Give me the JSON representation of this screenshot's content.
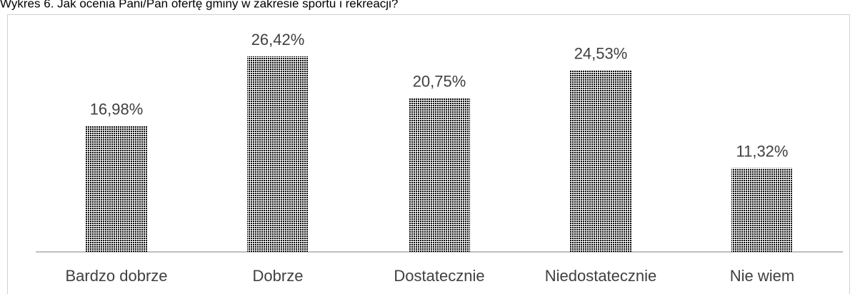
{
  "chart_data": {
    "type": "bar",
    "title": "Wykres 6. Jak ocenia Pani/Pan ofertę gminy w zakresie sportu i rekreacji?",
    "categories": [
      "Bardzo dobrze",
      "Dobrze",
      "Dostatecznie",
      "Niedostatecznie",
      "Nie wiem"
    ],
    "values": [
      16.98,
      26.42,
      20.75,
      24.53,
      11.32
    ],
    "value_labels": [
      "16,98%",
      "26,42%",
      "20,75%",
      "24,53%",
      "11,32%"
    ],
    "color": "#3fb8e2"
  }
}
